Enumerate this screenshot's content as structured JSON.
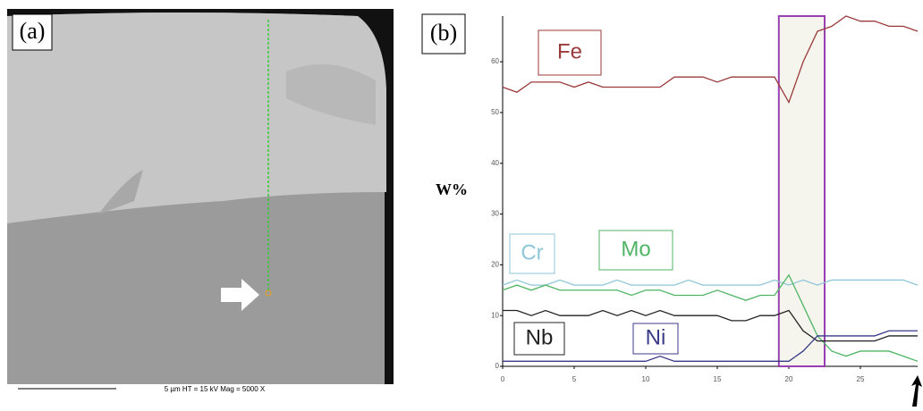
{
  "image_panel": {
    "label": "(a)",
    "scale_bar": "5 µm   HT = 15 kV   Mag = 5000 X"
  },
  "chart_data": {
    "type": "line",
    "panel_label": "(b)",
    "y_label": "W%",
    "x": [
      0,
      1,
      2,
      3,
      4,
      5,
      6,
      7,
      8,
      9,
      10,
      11,
      12,
      13,
      14,
      15,
      16,
      17,
      18,
      19,
      20,
      21,
      22,
      23,
      24,
      25,
      26,
      27,
      28,
      29
    ],
    "xlim": [
      0,
      29
    ],
    "xticks": [
      0,
      5,
      10,
      15,
      20,
      25
    ],
    "ylim": [
      0,
      69
    ],
    "yticks": [
      0,
      10,
      20,
      30,
      40,
      50,
      60
    ],
    "highlight_range": [
      19.3,
      22.5
    ],
    "series": [
      {
        "name": "Fe",
        "color": "#9b3a3a",
        "values": [
          55,
          54,
          56,
          56,
          56,
          55,
          56,
          55,
          55,
          55,
          55,
          55,
          57,
          57,
          57,
          56,
          57,
          57,
          57,
          57,
          52,
          60,
          66,
          67,
          69,
          68,
          68,
          67,
          67,
          66
        ]
      },
      {
        "name": "Cr",
        "color": "#8fc6d8",
        "values": [
          16,
          17,
          16,
          16,
          17,
          16,
          16,
          16,
          17,
          16,
          16,
          16,
          16,
          17,
          16,
          16,
          16,
          16,
          16,
          17,
          16,
          17,
          16,
          17,
          17,
          17,
          17,
          17,
          17,
          16
        ]
      },
      {
        "name": "Mo",
        "color": "#4fb565",
        "values": [
          15,
          16,
          15,
          16,
          15,
          15,
          15,
          15,
          15,
          14,
          15,
          15,
          14,
          14,
          14,
          15,
          14,
          13,
          14,
          14,
          18,
          12,
          6,
          3,
          2,
          3,
          3,
          3,
          2,
          1
        ]
      },
      {
        "name": "Nb",
        "color": "#222222",
        "values": [
          11,
          11,
          10,
          11,
          10,
          10,
          10,
          11,
          10,
          11,
          10,
          11,
          10,
          10,
          10,
          10,
          9,
          9,
          10,
          10,
          11,
          7,
          5,
          5,
          5,
          5,
          5,
          6,
          6,
          6
        ]
      },
      {
        "name": "Ni",
        "color": "#3a3a88",
        "values": [
          1,
          1,
          1,
          1,
          1,
          1,
          1,
          1,
          1,
          1,
          1,
          2,
          1,
          1,
          1,
          1,
          1,
          1,
          1,
          1,
          1,
          3,
          6,
          6,
          6,
          6,
          6,
          7,
          7,
          7
        ]
      }
    ]
  }
}
